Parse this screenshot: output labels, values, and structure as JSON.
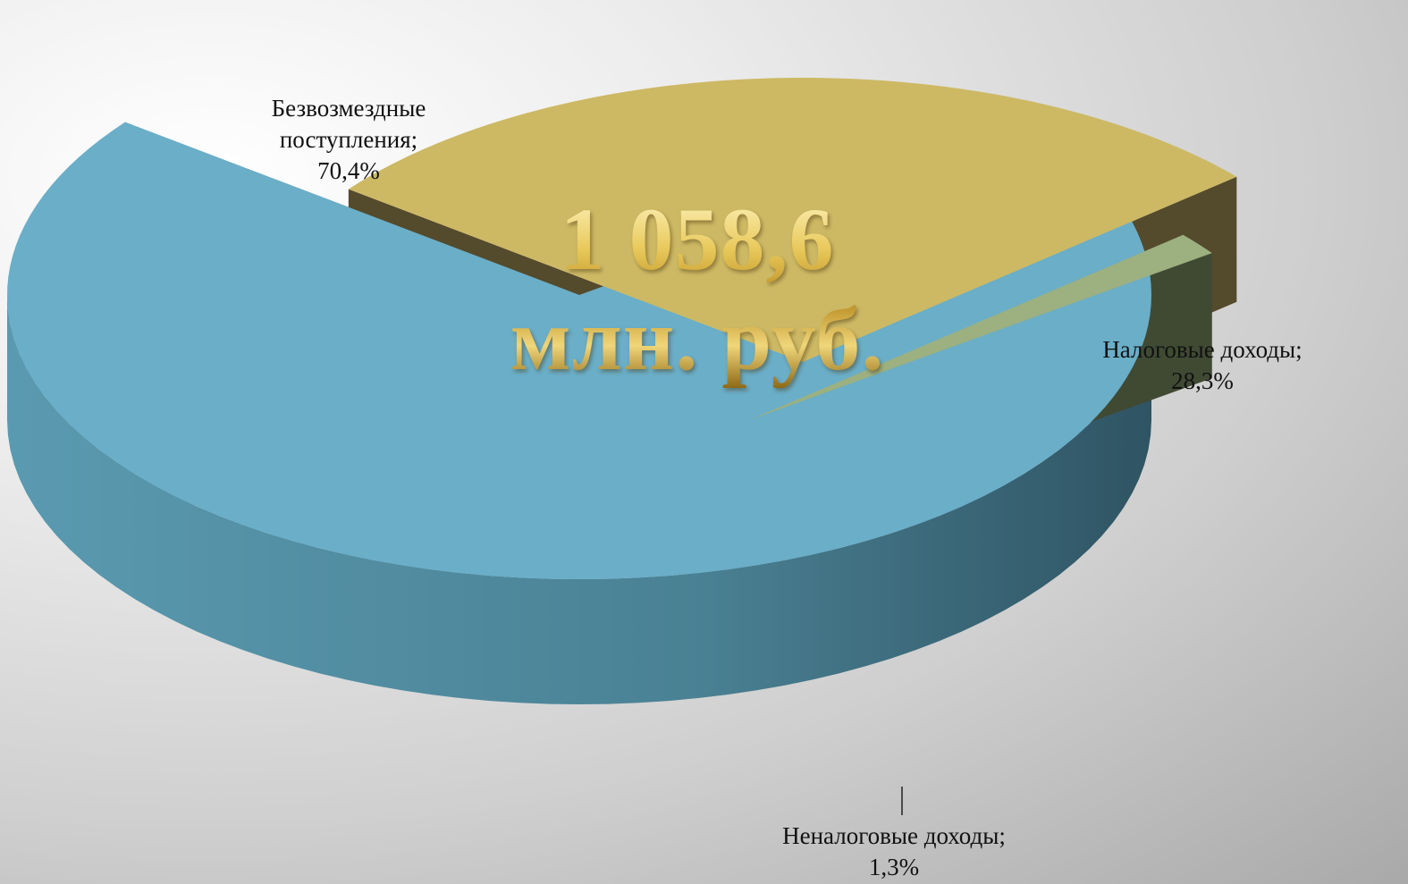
{
  "chart_data": {
    "type": "pie",
    "style": "3d-exploded",
    "center_text": [
      "1 058,6",
      "млн. руб."
    ],
    "slices": [
      {
        "label_line1": "Безвозмездные",
        "label_line2": "поступления;",
        "value_text": "70,4%",
        "value": 70.4,
        "top_color": "#6aaec8",
        "side_color": "#3e6f82"
      },
      {
        "label_line1": "Налоговые  доходы;",
        "value_text": "28,3%",
        "value": 28.3,
        "top_color": "#cdb964",
        "side_color": "#544a2c"
      },
      {
        "label_line1": "Неналоговые доходы;",
        "value_text": "1,3%",
        "value": 1.3,
        "top_color": "#9cb080",
        "side_color": "#404a33"
      }
    ]
  }
}
